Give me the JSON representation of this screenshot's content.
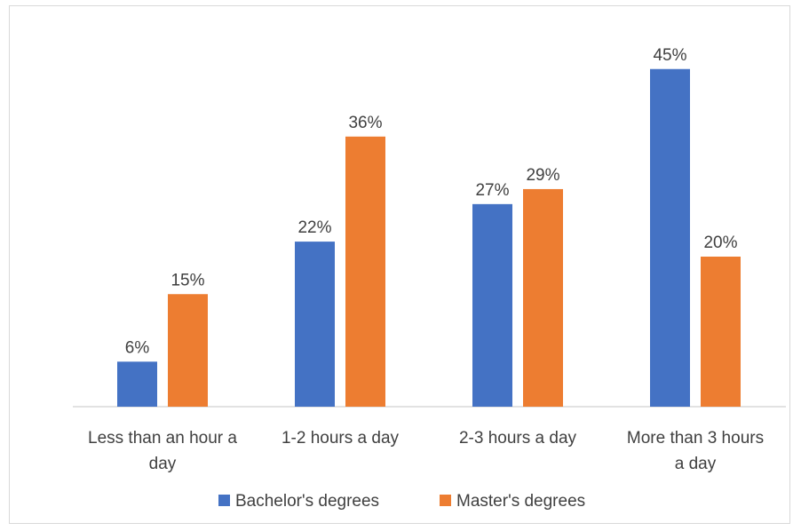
{
  "chart_data": {
    "type": "bar",
    "title": "",
    "xlabel": "",
    "ylabel": "",
    "categories": [
      [
        "Less than an hour a",
        "day"
      ],
      [
        "1-2 hours a day"
      ],
      [
        "2-3 hours a day"
      ],
      [
        "More than 3 hours",
        "a day"
      ]
    ],
    "series": [
      {
        "name": "Bachelor's degrees",
        "color": "#4472C4",
        "values": [
          6,
          22,
          27,
          45
        ],
        "labels": [
          "6%",
          "22%",
          "27%",
          "45%"
        ]
      },
      {
        "name": "Master's degrees",
        "color": "#ED7D31",
        "values": [
          15,
          36,
          29,
          20
        ],
        "labels": [
          "15%",
          "36%",
          "29%",
          "20%"
        ]
      }
    ],
    "ylim": [
      0,
      50
    ],
    "grid": false,
    "legend": "bottom",
    "value_format": "percent"
  }
}
